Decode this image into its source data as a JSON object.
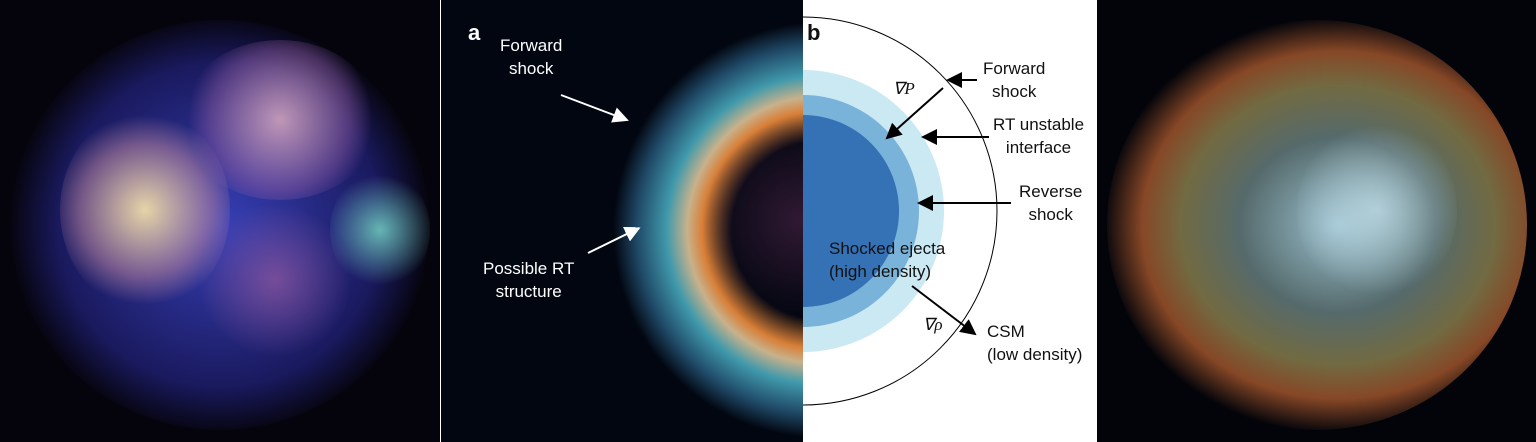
{
  "panel_a": {
    "letter": "a",
    "forward_shock_label": [
      "Forward",
      "shock"
    ],
    "rt_label": [
      "Possible RT",
      "structure"
    ]
  },
  "panel_b": {
    "letter": "b",
    "forward_shock": [
      "Forward",
      "shock"
    ],
    "rt_interface": [
      "RT unstable",
      "interface"
    ],
    "reverse_shock": [
      "Reverse",
      "shock"
    ],
    "ejecta": [
      "Shocked ejecta",
      "(high density)"
    ],
    "csm": [
      "CSM",
      "(low density)"
    ],
    "grad_p": "∇P",
    "grad_rho": "∇ρ",
    "colors": {
      "ejecta": "#3471b5",
      "shell_mid": "#7ab3d9",
      "shell_outer": "#cbe9f3"
    }
  }
}
